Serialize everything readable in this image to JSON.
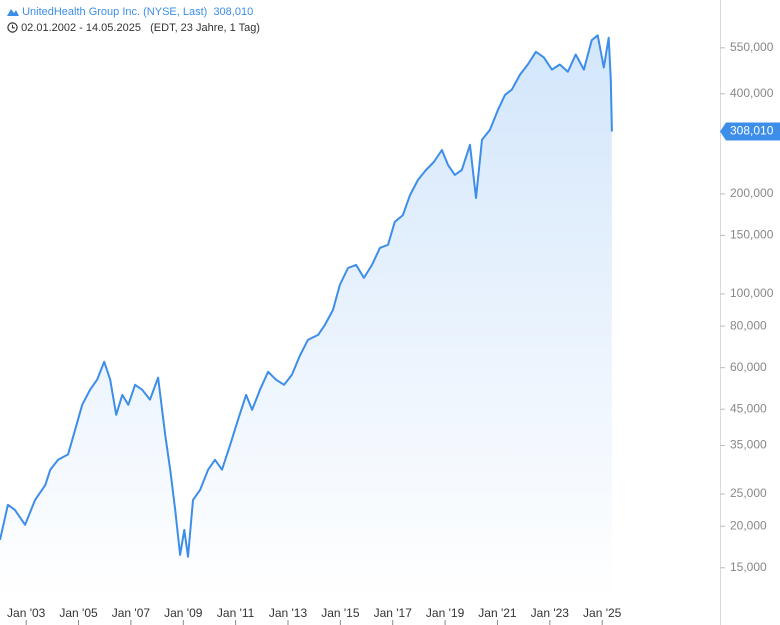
{
  "chart_data": {
    "type": "area",
    "date_range": "02.01.2002 - 14.05.2025",
    "range_info": "(EDT, 23 Jahre, 1 Tag)",
    "log_scale": true,
    "last_value": {
      "value": 308010,
      "label": "308,010"
    },
    "x": [
      2002.0,
      2002.3,
      2002.57,
      2002.96,
      2003.34,
      2003.73,
      2003.92,
      2004.22,
      2004.6,
      2004.87,
      2005.14,
      2005.44,
      2005.71,
      2005.98,
      2006.21,
      2006.44,
      2006.67,
      2006.9,
      2007.16,
      2007.43,
      2007.73,
      2008.04,
      2008.31,
      2008.5,
      2008.69,
      2008.88,
      2009.04,
      2009.18,
      2009.37,
      2009.64,
      2009.95,
      2010.21,
      2010.48,
      2010.79,
      2011.09,
      2011.4,
      2011.63,
      2011.93,
      2012.24,
      2012.54,
      2012.85,
      2013.15,
      2013.46,
      2013.76,
      2014.15,
      2014.41,
      2014.72,
      2014.98,
      2015.29,
      2015.6,
      2015.9,
      2016.21,
      2016.51,
      2016.82,
      2017.08,
      2017.39,
      2017.66,
      2017.96,
      2018.27,
      2018.57,
      2018.88,
      2019.11,
      2019.37,
      2019.64,
      2019.95,
      2020.18,
      2020.41,
      2020.71,
      2021.02,
      2021.29,
      2021.55,
      2021.86,
      2022.16,
      2022.47,
      2022.77,
      2023.08,
      2023.38,
      2023.69,
      2023.99,
      2024.3,
      2024.6,
      2024.83,
      2025.06,
      2025.25,
      2025.33,
      2025.37
    ],
    "series": [
      {
        "name": "UnitedHealth Group Inc. (NYSE, Last)",
        "color": "#3d8ee8",
        "values": [
          18200,
          23200,
          22400,
          20200,
          24000,
          26600,
          29600,
          31700,
          32900,
          39000,
          46400,
          51500,
          55200,
          62500,
          55200,
          43300,
          49700,
          46400,
          53300,
          51500,
          48100,
          56000,
          37700,
          29600,
          22400,
          16400,
          19500,
          16200,
          24000,
          25700,
          29600,
          31700,
          29600,
          35100,
          41800,
          49700,
          44800,
          51500,
          58300,
          55200,
          53300,
          57100,
          65300,
          72700,
          75300,
          80700,
          89500,
          106400,
          119700,
          122300,
          111700,
          122300,
          137500,
          140500,
          164700,
          172600,
          198300,
          220100,
          236000,
          249400,
          271000,
          244500,
          228000,
          236000,
          281000,
          194300,
          291000,
          311500,
          358000,
          397000,
          412000,
          457000,
          490000,
          535000,
          515000,
          473000,
          490000,
          466000,
          525000,
          473000,
          580000,
          600000,
          480000,
          590000,
          440000,
          308010
        ]
      }
    ],
    "xlim": [
      2002.0,
      2029.5
    ],
    "xticks": [
      {
        "value": 2003,
        "label": "Jan '03"
      },
      {
        "value": 2005,
        "label": "Jan '05"
      },
      {
        "value": 2007,
        "label": "Jan '07"
      },
      {
        "value": 2009,
        "label": "Jan '09"
      },
      {
        "value": 2011,
        "label": "Jan '11"
      },
      {
        "value": 2013,
        "label": "Jan '13"
      },
      {
        "value": 2015,
        "label": "Jan '15"
      },
      {
        "value": 2017,
        "label": "Jan '17"
      },
      {
        "value": 2019,
        "label": "Jan '19"
      },
      {
        "value": 2021,
        "label": "Jan '21"
      },
      {
        "value": 2023,
        "label": "Jan '23"
      },
      {
        "value": 2025,
        "label": "Jan '25"
      }
    ],
    "ylim": [
      12000,
      766000
    ],
    "yticks": [
      {
        "value": 15000,
        "label": "15,000"
      },
      {
        "value": 20000,
        "label": "20,000"
      },
      {
        "value": 25000,
        "label": "25,000"
      },
      {
        "value": 35000,
        "label": "35,000"
      },
      {
        "value": 45000,
        "label": "45,000"
      },
      {
        "value": 60000,
        "label": "60,000"
      },
      {
        "value": 80000,
        "label": "80,000"
      },
      {
        "value": 100000,
        "label": "100,000"
      },
      {
        "value": 150000,
        "label": "150,000"
      },
      {
        "value": 200000,
        "label": "200,000"
      },
      {
        "value": 400000,
        "label": "400,000"
      },
      {
        "value": 550000,
        "label": "550,000"
      }
    ]
  }
}
